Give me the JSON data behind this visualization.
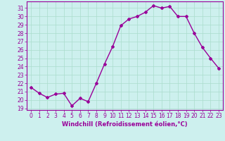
{
  "x": [
    0,
    1,
    2,
    3,
    4,
    5,
    6,
    7,
    8,
    9,
    10,
    11,
    12,
    13,
    14,
    15,
    16,
    17,
    18,
    19,
    20,
    21,
    22,
    23
  ],
  "y": [
    21.5,
    20.8,
    20.3,
    20.7,
    20.8,
    19.3,
    20.2,
    19.8,
    22.0,
    24.3,
    26.4,
    28.9,
    29.7,
    30.0,
    30.5,
    31.3,
    31.0,
    31.2,
    30.0,
    30.0,
    28.0,
    26.3,
    25.0,
    23.8
  ],
  "line_color": "#990099",
  "marker": "D",
  "marker_size": 2,
  "bg_color": "#cdf0ee",
  "grid_color": "#aaddcc",
  "xlabel": "Windchill (Refroidissement éolien,°C)",
  "xlabel_color": "#990099",
  "tick_color": "#990099",
  "ylim_min": 18.8,
  "ylim_max": 31.8,
  "yticks": [
    19,
    20,
    21,
    22,
    23,
    24,
    25,
    26,
    27,
    28,
    29,
    30,
    31
  ],
  "xticks": [
    0,
    1,
    2,
    3,
    4,
    5,
    6,
    7,
    8,
    9,
    10,
    11,
    12,
    13,
    14,
    15,
    16,
    17,
    18,
    19,
    20,
    21,
    22,
    23
  ],
  "spine_color": "#990099",
  "line_width": 1.0,
  "tick_fontsize": 5.5,
  "xlabel_fontsize": 6.0
}
